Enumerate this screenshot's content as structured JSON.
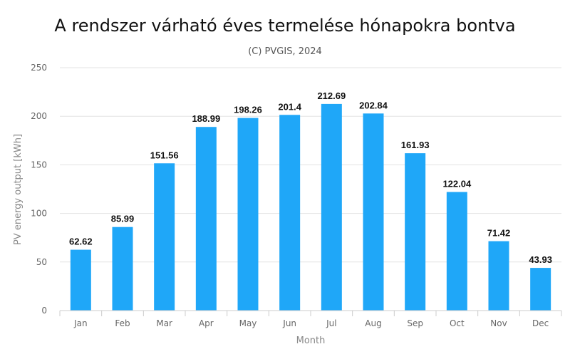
{
  "chart_data": {
    "type": "bar",
    "title": "A rendszer várható éves termelése hónapokra bontva",
    "subtitle": "(C) PVGIS, 2024",
    "xlabel": "Month",
    "ylabel": "PV energy output [kWh]",
    "ylim": [
      0,
      250
    ],
    "yticks": [
      0,
      50,
      100,
      150,
      200,
      250
    ],
    "grid": true,
    "categories": [
      "Jan",
      "Feb",
      "Mar",
      "Apr",
      "May",
      "Jun",
      "Jul",
      "Aug",
      "Sep",
      "Oct",
      "Nov",
      "Dec"
    ],
    "values": [
      62.62,
      85.99,
      151.56,
      188.99,
      198.26,
      201.4,
      212.69,
      202.84,
      161.93,
      122.04,
      71.42,
      43.93
    ],
    "bar_color": "#1fa7f8"
  }
}
